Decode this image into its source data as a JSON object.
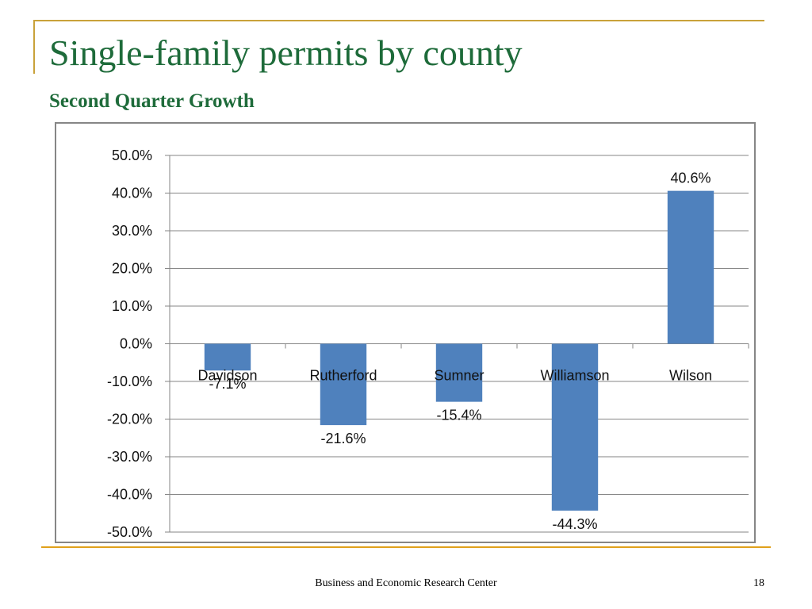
{
  "slide": {
    "title": "Single-family permits by county",
    "subtitle": "Second Quarter Growth",
    "footer": "Business and Economic Research Center",
    "page_number": "18"
  },
  "colors": {
    "title": "#1e6b3a",
    "frame": "#c9a23a",
    "rule": "#e0a11b",
    "bar": "#4f81bd",
    "grid": "#868686"
  },
  "chart_data": {
    "type": "bar",
    "title": "",
    "xlabel": "",
    "ylabel": "",
    "categories": [
      "Davidson",
      "Rutherford",
      "Sumner",
      "Williamson",
      "Wilson"
    ],
    "values": [
      -7.1,
      -21.6,
      -15.4,
      -44.3,
      40.6
    ],
    "data_labels": [
      "-7.1%",
      "-21.6%",
      "-15.4%",
      "-44.3%",
      "40.6%"
    ],
    "ylim": [
      -50,
      50
    ],
    "yticks": [
      50,
      40,
      30,
      20,
      10,
      0,
      -10,
      -20,
      -30,
      -40,
      -50
    ],
    "ytick_labels": [
      "50.0%",
      "40.0%",
      "30.0%",
      "20.0%",
      "10.0%",
      "0.0%",
      "-10.0%",
      "-20.0%",
      "-30.0%",
      "-40.0%",
      "-50.0%"
    ],
    "grid": true,
    "legend": false
  }
}
